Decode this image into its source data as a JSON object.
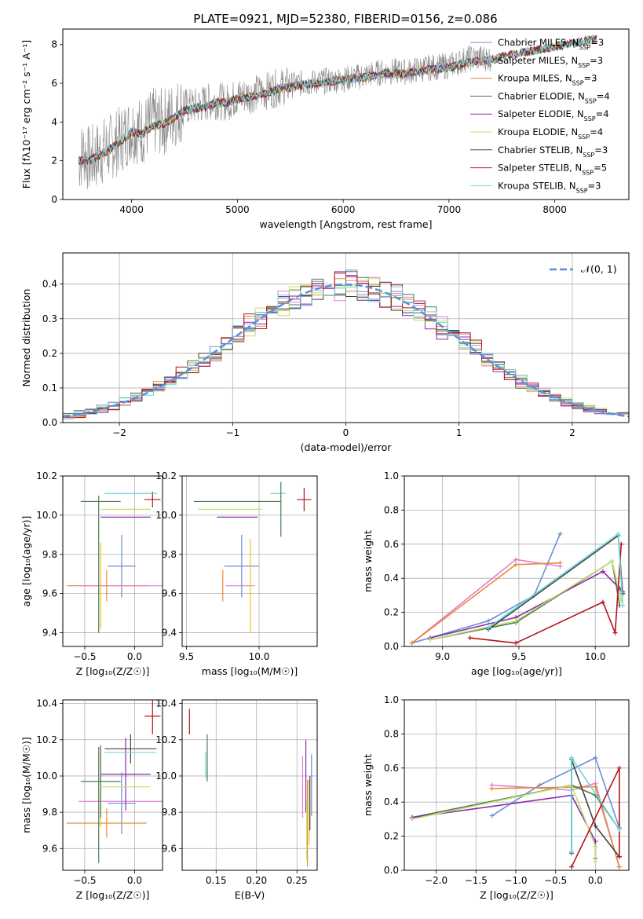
{
  "figure": {
    "title": "PLATE=0921, MJD=52380, FIBERID=0156, z=0.086",
    "colors": [
      "#6a8fd6",
      "#e58a3c",
      "#e07fd0",
      "#f0c419",
      "#4e7a52",
      "#8e2ab0",
      "#c3e06c",
      "#444444",
      "#b2141a",
      "#6fd8dc",
      "#888888"
    ]
  },
  "chart_data": [
    {
      "id": "spectrum",
      "type": "line",
      "xlabel": "wavelength [Angstrom, rest frame]",
      "ylabel": "Flux [fλ10⁻¹⁷ erg cm⁻² s⁻¹ A⁻¹]",
      "xlim": [
        3350,
        8700
      ],
      "ylim": [
        0,
        8.8
      ],
      "xticks": [
        4000,
        5000,
        6000,
        7000,
        8000
      ],
      "yticks": [
        0,
        2,
        4,
        6,
        8
      ],
      "grid": false,
      "legend": "upper-right",
      "data_series": {
        "name": "",
        "color": "#888888",
        "x": [
          3500,
          3550,
          3600,
          3700,
          3800,
          3900,
          4000,
          4100,
          4200,
          4300,
          4400,
          4500,
          4600,
          4700,
          4800,
          4900,
          5000,
          5200,
          5400,
          5600,
          5800,
          6000,
          6200,
          6400,
          6600,
          6800,
          7000,
          7200,
          7400
        ],
        "y": [
          2.0,
          2.5,
          2.0,
          2.4,
          2.7,
          3.1,
          3.7,
          3.5,
          4.0,
          4.0,
          4.4,
          4.8,
          4.8,
          5.0,
          5.1,
          5.0,
          5.3,
          5.5,
          5.8,
          6.0,
          6.1,
          6.2,
          6.4,
          6.6,
          6.6,
          6.8,
          6.9,
          7.3,
          7.3
        ]
      },
      "model_x": [
        3500,
        3600,
        3700,
        3800,
        3900,
        4000,
        4100,
        4200,
        4300,
        4400,
        4500,
        4600,
        4700,
        4800,
        4900,
        5000,
        5200,
        5400,
        5600,
        5800,
        6000,
        6200,
        6400,
        6600,
        6800,
        7000,
        7200,
        7400,
        7600,
        7800,
        8000,
        8200,
        8400
      ],
      "model_y": [
        2.0,
        2.0,
        2.3,
        2.6,
        3.0,
        3.5,
        3.4,
        3.8,
        3.9,
        4.2,
        4.6,
        4.7,
        4.8,
        5.0,
        5.0,
        5.2,
        5.4,
        5.7,
        5.9,
        6.0,
        6.2,
        6.3,
        6.5,
        6.5,
        6.7,
        6.8,
        7.1,
        7.2,
        7.5,
        7.7,
        7.9,
        8.1,
        8.3
      ],
      "models": [
        {
          "name": "Chabrier MILES, N",
          "sub": "SSP",
          "tail": "=3",
          "color": "#6a8fd6"
        },
        {
          "name": "Salpeter MILES, N",
          "sub": "SSP",
          "tail": "=3",
          "color": "#e07fd0"
        },
        {
          "name": "Kroupa MILES, N",
          "sub": "SSP",
          "tail": "=3",
          "color": "#e58a3c"
        },
        {
          "name": "Chabrier ELODIE, N",
          "sub": "SSP",
          "tail": "=4",
          "color": "#4e7a52"
        },
        {
          "name": "Salpeter ELODIE, N",
          "sub": "SSP",
          "tail": "=4",
          "color": "#8e2ab0"
        },
        {
          "name": "Kroupa ELODIE, N",
          "sub": "SSP",
          "tail": "=4",
          "color": "#c3e06c"
        },
        {
          "name": "Chabrier STELIB, N",
          "sub": "SSP",
          "tail": "=3",
          "color": "#444444"
        },
        {
          "name": "Salpeter STELIB, N",
          "sub": "SSP",
          "tail": "=5",
          "color": "#b2141a"
        },
        {
          "name": "Kroupa STELIB, N",
          "sub": "SSP",
          "tail": "=3",
          "color": "#6fd8dc"
        }
      ]
    },
    {
      "id": "residuals",
      "type": "histogram",
      "xlabel": "(data-model)/error",
      "ylabel": "Normed distribution",
      "xlim": [
        -2.5,
        2.5
      ],
      "ylim": [
        0,
        0.49
      ],
      "xticks": [
        -2,
        -1,
        0,
        1,
        2
      ],
      "yticks": [
        0.0,
        0.1,
        0.2,
        0.3,
        0.4
      ],
      "grid": true,
      "legend": "upper-right",
      "gaussian": {
        "name": "𝒩(0, 1)",
        "color": "#5b8fd6",
        "mean": 0,
        "sigma": 1
      },
      "bin_width": 0.1
    },
    {
      "id": "age_vs_z",
      "type": "errorbar",
      "xlabel": "Z [log₁₀(Z/Z☉)]",
      "ylabel": "age  [log₁₀(age/yr)]",
      "xlim": [
        -0.72,
        0.28
      ],
      "ylim": [
        9.33,
        10.2
      ],
      "xticks": [
        -0.5,
        0.0
      ],
      "yticks": [
        9.4,
        9.6,
        9.8,
        10.0,
        10.2
      ],
      "grid": true,
      "points": [
        {
          "color": "#6a8fd6",
          "x": -0.13,
          "xerr": 0.14,
          "y": 9.74,
          "yerr": 0.16
        },
        {
          "color": "#e58a3c",
          "x": -0.28,
          "xerr": 0.4,
          "y": 9.64,
          "yerr": 0.08
        },
        {
          "color": "#e07fd0",
          "x": -0.14,
          "xerr": 0.42,
          "y": 9.64,
          "yerr": 0.0
        },
        {
          "color": "#f0c419",
          "x": -0.34,
          "xerr": 0.0,
          "y": 9.64,
          "yerr": 0.22
        },
        {
          "color": "#4e7a52",
          "x": -0.34,
          "xerr": 0.2,
          "y": 10.07,
          "yerr": 0.0
        },
        {
          "color": "#8e2ab0",
          "x": -0.09,
          "xerr": 0.25,
          "y": 9.99,
          "yerr": 0.0
        },
        {
          "color": "#c3e06c",
          "x": -0.09,
          "xerr": 0.25,
          "y": 10.03,
          "yerr": 0.0
        },
        {
          "color": "#444444",
          "x": -0.04,
          "xerr": 0.26,
          "y": 10.11,
          "yerr": 0.0
        },
        {
          "color": "#b2141a",
          "x": 0.18,
          "xerr": 0.08,
          "y": 10.08,
          "yerr": 0.04
        },
        {
          "color": "#6fd8dc",
          "x": -0.04,
          "xerr": 0.26,
          "y": 10.11,
          "yerr": 0.0
        },
        {
          "color": "#4e7a52",
          "x": -0.36,
          "xerr": 0.0,
          "y": 9.75,
          "yerr": 0.35
        }
      ]
    },
    {
      "id": "age_vs_mass",
      "type": "errorbar",
      "xlabel": "mass [log₁₀(M/M☉)]",
      "ylabel": "",
      "xlim": [
        9.47,
        10.4
      ],
      "ylim": [
        9.33,
        10.2
      ],
      "xticks": [
        9.5,
        10.0
      ],
      "yticks": [
        9.4,
        9.6,
        9.8,
        10.0,
        10.2
      ],
      "grid": true,
      "points": [
        {
          "color": "#6a8fd6",
          "x": 9.88,
          "xerr": 0.12,
          "y": 9.74,
          "yerr": 0.16
        },
        {
          "color": "#e58a3c",
          "x": 9.75,
          "xerr": 0.0,
          "y": 9.64,
          "yerr": 0.08
        },
        {
          "color": "#e07fd0",
          "x": 9.87,
          "xerr": 0.1,
          "y": 9.64,
          "yerr": 0.0
        },
        {
          "color": "#f0c419",
          "x": 9.94,
          "xerr": 0.0,
          "y": 9.64,
          "yerr": 0.24
        },
        {
          "color": "#4e7a52",
          "x": 9.85,
          "xerr": 0.3,
          "y": 10.07,
          "yerr": 0.0
        },
        {
          "color": "#8e2ab0",
          "x": 9.85,
          "xerr": 0.14,
          "y": 9.99,
          "yerr": 0.0
        },
        {
          "color": "#c3e06c",
          "x": 9.8,
          "xerr": 0.22,
          "y": 10.03,
          "yerr": 0.0
        },
        {
          "color": "#444444",
          "x": 10.13,
          "xerr": 0.05,
          "y": 10.11,
          "yerr": 0.0
        },
        {
          "color": "#b2141a",
          "x": 10.31,
          "xerr": 0.05,
          "y": 10.08,
          "yerr": 0.06
        },
        {
          "color": "#6fd8dc",
          "x": 10.13,
          "xerr": 0.05,
          "y": 10.11,
          "yerr": 0.0
        },
        {
          "color": "#4e7a52",
          "x": 10.15,
          "xerr": 0.0,
          "y": 10.03,
          "yerr": 0.14
        }
      ]
    },
    {
      "id": "weight_vs_age",
      "type": "line",
      "xlabel": "age  [log₁₀(age/yr)]",
      "ylabel": "mass weight",
      "xlim": [
        8.75,
        10.22
      ],
      "ylim": [
        0,
        1
      ],
      "xticks": [
        9.0,
        9.5,
        10.0
      ],
      "yticks": [
        0.0,
        0.2,
        0.4,
        0.6,
        0.8,
        1.0
      ],
      "grid": true,
      "series": [
        {
          "color": "#6a8fd6",
          "x": [
            8.8,
            9.3,
            9.6,
            9.77
          ],
          "y": [
            0.02,
            0.15,
            0.3,
            0.66
          ]
        },
        {
          "color": "#e07fd0",
          "x": [
            8.8,
            9.48,
            9.77
          ],
          "y": [
            0.02,
            0.51,
            0.47
          ]
        },
        {
          "color": "#e58a3c",
          "x": [
            8.8,
            9.48,
            9.77
          ],
          "y": [
            0.02,
            0.48,
            0.49
          ]
        },
        {
          "color": "#4e7a52",
          "x": [
            8.92,
            9.48,
            10.11,
            10.16
          ],
          "y": [
            0.04,
            0.14,
            0.5,
            0.24
          ]
        },
        {
          "color": "#8e2ab0",
          "x": [
            8.92,
            9.48,
            10.05,
            10.16,
            10.18
          ],
          "y": [
            0.05,
            0.17,
            0.44,
            0.34,
            0.32
          ]
        },
        {
          "color": "#c3e06c",
          "x": [
            8.92,
            9.48,
            10.11,
            10.17
          ],
          "y": [
            0.04,
            0.15,
            0.5,
            0.27
          ]
        },
        {
          "color": "#444444",
          "x": [
            9.3,
            10.15,
            10.18
          ],
          "y": [
            0.1,
            0.65,
            0.31
          ]
        },
        {
          "color": "#b2141a",
          "x": [
            9.18,
            9.48,
            10.05,
            10.13,
            10.17
          ],
          "y": [
            0.05,
            0.02,
            0.26,
            0.08,
            0.6
          ]
        },
        {
          "color": "#6fd8dc",
          "x": [
            9.3,
            10.15,
            10.18
          ],
          "y": [
            0.11,
            0.66,
            0.24
          ]
        }
      ]
    },
    {
      "id": "mass_vs_z",
      "type": "errorbar",
      "xlabel": "Z [log₁₀(Z/Z☉)]",
      "ylabel": "mass [log₁₀(M/M☉)]",
      "xlim": [
        -0.72,
        0.28
      ],
      "ylim": [
        9.48,
        10.42
      ],
      "xticks": [
        -0.5,
        0.0
      ],
      "yticks": [
        9.6,
        9.8,
        10.0,
        10.2,
        10.4
      ],
      "grid": true,
      "points": [
        {
          "color": "#6a8fd6",
          "x": -0.13,
          "xerr": 0.14,
          "y": 9.85,
          "yerr": 0.17
        },
        {
          "color": "#e58a3c",
          "x": -0.28,
          "xerr": 0.4,
          "y": 9.74,
          "yerr": 0.08
        },
        {
          "color": "#e07fd0",
          "x": -0.14,
          "xerr": 0.42,
          "y": 9.86,
          "yerr": 0.0
        },
        {
          "color": "#f0c419",
          "x": -0.34,
          "xerr": 0.0,
          "y": 9.94,
          "yerr": 0.22
        },
        {
          "color": "#4e7a52",
          "x": -0.34,
          "xerr": 0.2,
          "y": 9.97,
          "yerr": 0.2
        },
        {
          "color": "#8e2ab0",
          "x": -0.09,
          "xerr": 0.25,
          "y": 10.01,
          "yerr": 0.2
        },
        {
          "color": "#c3e06c",
          "x": -0.09,
          "xerr": 0.25,
          "y": 9.94,
          "yerr": 0.0
        },
        {
          "color": "#444444",
          "x": -0.04,
          "xerr": 0.26,
          "y": 10.15,
          "yerr": 0.08
        },
        {
          "color": "#b2141a",
          "x": 0.18,
          "xerr": 0.08,
          "y": 10.33,
          "yerr": 0.1
        },
        {
          "color": "#6fd8dc",
          "x": -0.04,
          "xerr": 0.26,
          "y": 10.13,
          "yerr": 0.0
        },
        {
          "color": "#4e7a52",
          "x": -0.36,
          "xerr": 0.0,
          "y": 9.84,
          "yerr": 0.32
        }
      ]
    },
    {
      "id": "mass_vs_ebv",
      "type": "errorbar",
      "xlabel": "E(B-V)",
      "ylabel": "",
      "xlim": [
        0.108,
        0.275
      ],
      "ylim": [
        9.48,
        10.42
      ],
      "xticks": [
        0.15,
        0.2,
        0.25
      ],
      "yticks": [
        9.6,
        9.8,
        10.0,
        10.2,
        10.4
      ],
      "grid": true,
      "points": [
        {
          "color": "#b2141a",
          "x": 0.117,
          "xerr": 0.0,
          "y": 10.3,
          "yerr": 0.07
        },
        {
          "color": "#4e7a52",
          "x": 0.139,
          "xerr": 0.0,
          "y": 10.1,
          "yerr": 0.13
        },
        {
          "color": "#6fd8dc",
          "x": 0.137,
          "xerr": 0.0,
          "y": 10.06,
          "yerr": 0.07
        },
        {
          "color": "#e07fd0",
          "x": 0.257,
          "xerr": 0.0,
          "y": 9.94,
          "yerr": 0.17
        },
        {
          "color": "#8e2ab0",
          "x": 0.261,
          "xerr": 0.0,
          "y": 10.0,
          "yerr": 0.2
        },
        {
          "color": "#e58a3c",
          "x": 0.263,
          "xerr": 0.0,
          "y": 9.74,
          "yerr": 0.24
        },
        {
          "color": "#f0c419",
          "x": 0.265,
          "xerr": 0.0,
          "y": 9.8,
          "yerr": 0.18
        },
        {
          "color": "#c3e06c",
          "x": 0.262,
          "xerr": 0.0,
          "y": 9.7,
          "yerr": 0.16
        },
        {
          "color": "#6a8fd6",
          "x": 0.268,
          "xerr": 0.0,
          "y": 9.95,
          "yerr": 0.17
        },
        {
          "color": "#444444",
          "x": 0.266,
          "xerr": 0.0,
          "y": 9.85,
          "yerr": 0.15
        }
      ]
    },
    {
      "id": "weight_vs_z",
      "type": "line",
      "xlabel": "Z [log₁₀(Z/Z☉)]",
      "ylabel": "mass weight",
      "xlim": [
        -2.4,
        0.42
      ],
      "ylim": [
        0,
        1
      ],
      "xticks": [
        -2.0,
        -1.5,
        -1.0,
        -0.5,
        0.0
      ],
      "yticks": [
        0.0,
        0.2,
        0.4,
        0.6,
        0.8,
        1.0
      ],
      "grid": true,
      "series": [
        {
          "color": "#6a8fd6",
          "x": [
            -1.3,
            -0.7,
            0.0,
            0.3
          ],
          "y": [
            0.32,
            0.5,
            0.66,
            0.25
          ]
        },
        {
          "color": "#e07fd0",
          "x": [
            -1.3,
            -0.3,
            0.0,
            0.3
          ],
          "y": [
            0.5,
            0.47,
            0.51,
            0.02
          ]
        },
        {
          "color": "#e58a3c",
          "x": [
            -1.3,
            0.0,
            0.3
          ],
          "y": [
            0.48,
            0.49,
            0.02
          ]
        },
        {
          "color": "#4e7a52",
          "x": [
            -2.3,
            -0.3,
            0.0,
            0.3
          ],
          "y": [
            0.31,
            0.5,
            0.44,
            0.24
          ]
        },
        {
          "color": "#8e2ab0",
          "x": [
            -2.3,
            -0.3,
            0.0,
            0.0
          ],
          "y": [
            0.31,
            0.44,
            0.17,
            0.07
          ]
        },
        {
          "color": "#c3e06c",
          "x": [
            -2.3,
            -0.3,
            0.0,
            0.0
          ],
          "y": [
            0.3,
            0.5,
            0.14,
            0.05
          ]
        },
        {
          "color": "#444444",
          "x": [
            -0.3,
            -0.3,
            0.0,
            0.3
          ],
          "y": [
            0.1,
            0.65,
            0.26,
            0.08
          ]
        },
        {
          "color": "#b2141a",
          "x": [
            -0.3,
            0.3,
            0.3
          ],
          "y": [
            0.02,
            0.6,
            0.08
          ]
        },
        {
          "color": "#6fd8dc",
          "x": [
            -0.3,
            -0.3,
            0.3
          ],
          "y": [
            0.11,
            0.66,
            0.24
          ]
        }
      ]
    }
  ]
}
